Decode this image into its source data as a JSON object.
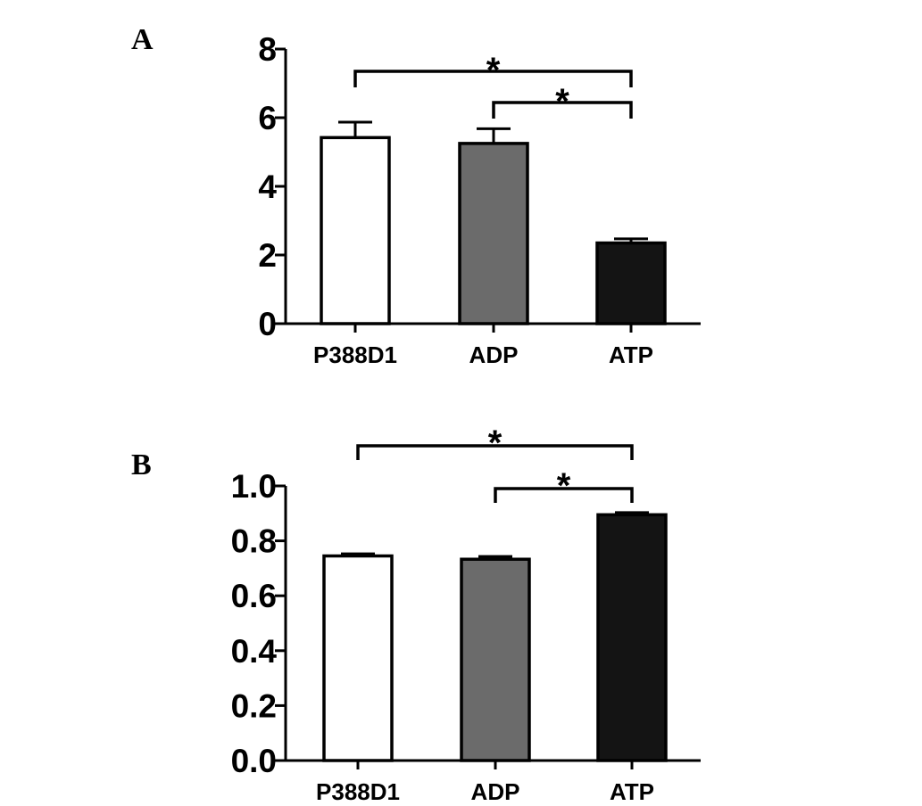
{
  "panel_labels": [
    "A",
    "B"
  ],
  "chart_data": [
    {
      "type": "bar",
      "panel": "A",
      "categories": [
        "P388D1",
        "ADP",
        "ATP"
      ],
      "values": [
        5.42,
        5.25,
        2.35
      ],
      "errors": [
        0.45,
        0.43,
        0.12
      ],
      "bar_colors": [
        "#ffffff",
        "#6b6b6b",
        "#141414"
      ],
      "ylim": [
        0,
        8
      ],
      "yticks": [
        "0",
        "2",
        "4",
        "6",
        "8"
      ],
      "ytick_values": [
        0,
        2,
        4,
        6,
        8
      ],
      "xlabel": "",
      "ylabel": "",
      "significance": [
        {
          "from": 0,
          "to": 2,
          "label": "*"
        },
        {
          "from": 1,
          "to": 2,
          "label": "*"
        }
      ]
    },
    {
      "type": "bar",
      "panel": "B",
      "categories": [
        "P388D1",
        "ADP",
        "ATP"
      ],
      "values": [
        0.745,
        0.733,
        0.895
      ],
      "errors": [
        0.008,
        0.01,
        0.008
      ],
      "bar_colors": [
        "#ffffff",
        "#6b6b6b",
        "#141414"
      ],
      "ylim": [
        0,
        1.0
      ],
      "yticks": [
        "0.0",
        "0.2",
        "0.4",
        "0.6",
        "0.8",
        "1.0"
      ],
      "ytick_values": [
        0,
        0.2,
        0.4,
        0.6,
        0.8,
        1.0
      ],
      "xlabel": "",
      "ylabel": "",
      "significance": [
        {
          "from": 0,
          "to": 2,
          "label": "*"
        },
        {
          "from": 1,
          "to": 2,
          "label": "*"
        }
      ]
    }
  ]
}
